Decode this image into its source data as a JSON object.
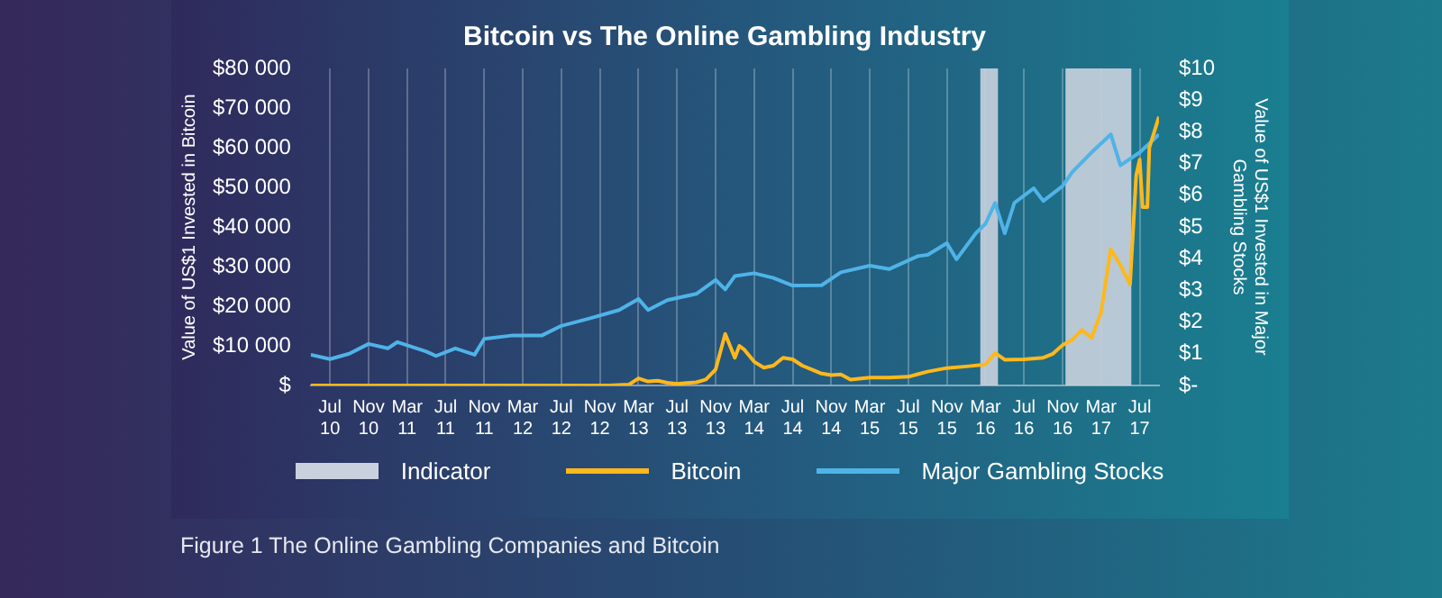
{
  "chart_data": {
    "type": "line",
    "title": "Bitcoin vs The Online Gambling Industry",
    "ylabel": "Value of US$1 Invested in Bitcoin",
    "y2label": "Value of US$1 Invested in Major Gambling Stocks",
    "xlim": [
      "2010-05",
      "2017-09"
    ],
    "xticks": [
      {
        "value": "2010-07",
        "label": "Jul 10"
      },
      {
        "value": "2010-11",
        "label": "Nov 10"
      },
      {
        "value": "2011-03",
        "label": "Mar 11"
      },
      {
        "value": "2011-07",
        "label": "Jul 11"
      },
      {
        "value": "2011-11",
        "label": "Nov 11"
      },
      {
        "value": "2012-03",
        "label": "Mar 12"
      },
      {
        "value": "2012-07",
        "label": "Jul 12"
      },
      {
        "value": "2012-11",
        "label": "Nov 12"
      },
      {
        "value": "2013-03",
        "label": "Mar 13"
      },
      {
        "value": "2013-07",
        "label": "Jul 13"
      },
      {
        "value": "2013-11",
        "label": "Nov 13"
      },
      {
        "value": "2014-03",
        "label": "Mar 14"
      },
      {
        "value": "2014-07",
        "label": "Jul 14"
      },
      {
        "value": "2014-11",
        "label": "Nov 14"
      },
      {
        "value": "2015-03",
        "label": "Mar 15"
      },
      {
        "value": "2015-07",
        "label": "Jul 15"
      },
      {
        "value": "2015-11",
        "label": "Nov 15"
      },
      {
        "value": "2016-03",
        "label": "Mar 16"
      },
      {
        "value": "2016-07",
        "label": "Jul 16"
      },
      {
        "value": "2016-11",
        "label": "Nov 16"
      },
      {
        "value": "2017-03",
        "label": "Mar 17"
      },
      {
        "value": "2017-07",
        "label": "Jul 17"
      }
    ],
    "ylim": [
      0,
      80000
    ],
    "yticks": [
      {
        "value": 0,
        "label": "$"
      },
      {
        "value": 10000,
        "label": "$10 000"
      },
      {
        "value": 20000,
        "label": "$20 000"
      },
      {
        "value": 30000,
        "label": "$30 000"
      },
      {
        "value": 40000,
        "label": "$40 000"
      },
      {
        "value": 50000,
        "label": "$50 000"
      },
      {
        "value": 60000,
        "label": "$60 000"
      },
      {
        "value": 70000,
        "label": "$70 000"
      },
      {
        "value": 80000,
        "label": "$80 000"
      }
    ],
    "y2lim": [
      0,
      10
    ],
    "y2ticks": [
      {
        "value": 0,
        "label": "$-"
      },
      {
        "value": 1,
        "label": "$1"
      },
      {
        "value": 2,
        "label": "$2"
      },
      {
        "value": 3,
        "label": "$3"
      },
      {
        "value": 4,
        "label": "$4"
      },
      {
        "value": 5,
        "label": "$5"
      },
      {
        "value": 6,
        "label": "$6"
      },
      {
        "value": 7,
        "label": "$7"
      },
      {
        "value": 8,
        "label": "$8"
      },
      {
        "value": 9,
        "label": "$9"
      },
      {
        "value": 10,
        "label": "$10"
      }
    ],
    "bands": [
      {
        "axis": "x",
        "from": "2016-02-15",
        "to": "2016-04-10",
        "label": "Indicator",
        "color": "#c9d1de"
      },
      {
        "axis": "x",
        "from": "2016-11-10",
        "to": "2017-06-05",
        "color": "#c9d1de"
      }
    ],
    "series": [
      {
        "name": "Bitcoin",
        "color": "#ffb81c",
        "axis": "y",
        "x": [
          "2010-05",
          "2012-12",
          "2013-02",
          "2013-03",
          "2013-04",
          "2013-05",
          "2013-06",
          "2013-07",
          "2013-08",
          "2013-09",
          "2013-10",
          "2013-11",
          "2013-12",
          "2014-01",
          "2014-01-15",
          "2014-02",
          "2014-03",
          "2014-04",
          "2014-05",
          "2014-06",
          "2014-07",
          "2014-08",
          "2014-09",
          "2014-10",
          "2014-11",
          "2014-12",
          "2015-01",
          "2015-03",
          "2015-05",
          "2015-07",
          "2015-09",
          "2015-11",
          "2016-01",
          "2016-03",
          "2016-04",
          "2016-05",
          "2016-07",
          "2016-09",
          "2016-10",
          "2016-11",
          "2016-12",
          "2017-01",
          "2017-02",
          "2017-03",
          "2017-04",
          "2017-05",
          "2017-06",
          "2017-06-20",
          "2017-07",
          "2017-07-10",
          "2017-07-25",
          "2017-08",
          "2017-09"
        ],
        "values": [
          0,
          0,
          200,
          1800,
          1000,
          1200,
          700,
          400,
          600,
          800,
          1500,
          4000,
          13000,
          7000,
          10000,
          9000,
          6000,
          4500,
          5000,
          7000,
          6600,
          5000,
          4000,
          3000,
          2600,
          2800,
          1500,
          2000,
          2000,
          2200,
          3500,
          4400,
          4800,
          5300,
          8200,
          6500,
          6600,
          7000,
          8000,
          10200,
          11500,
          14000,
          12000,
          18500,
          34400,
          30400,
          25500,
          53000,
          57000,
          45000,
          45000,
          60000,
          67800
        ]
      },
      {
        "name": "Major Gambling Stocks",
        "color": "#4fb3e8",
        "axis": "y2",
        "x": [
          "2010-05",
          "2010-07",
          "2010-09",
          "2010-11",
          "2011-01",
          "2011-02",
          "2011-05",
          "2011-06",
          "2011-08",
          "2011-10",
          "2011-11",
          "2012-02",
          "2012-05",
          "2012-07",
          "2012-10",
          "2013-01",
          "2013-03",
          "2013-04",
          "2013-06",
          "2013-09",
          "2013-11",
          "2013-12",
          "2014-01",
          "2014-03",
          "2014-05",
          "2014-07",
          "2014-10",
          "2014-12",
          "2015-03",
          "2015-05",
          "2015-08",
          "2015-09",
          "2015-11",
          "2015-12",
          "2016-02",
          "2016-03",
          "2016-04",
          "2016-05",
          "2016-06",
          "2016-08",
          "2016-09",
          "2016-11",
          "2016-12",
          "2017-02",
          "2017-04",
          "2017-05",
          "2017-07",
          "2017-09"
        ],
        "values": [
          0.97,
          0.83,
          1.0,
          1.31,
          1.17,
          1.37,
          1.07,
          0.93,
          1.17,
          0.97,
          1.47,
          1.58,
          1.58,
          1.88,
          2.12,
          2.38,
          2.73,
          2.38,
          2.69,
          2.89,
          3.33,
          3.03,
          3.45,
          3.54,
          3.39,
          3.15,
          3.16,
          3.57,
          3.78,
          3.67,
          4.08,
          4.12,
          4.49,
          3.98,
          4.8,
          5.1,
          5.76,
          4.8,
          5.76,
          6.22,
          5.82,
          6.29,
          6.73,
          7.35,
          7.92,
          6.94,
          7.35,
          7.92
        ]
      }
    ],
    "grid": "x",
    "legend": "bottom",
    "marker": "none",
    "line_style": "solid",
    "annotations": [
      "Figure 1 The Online Gambling Companies and Bitcoin"
    ]
  }
}
